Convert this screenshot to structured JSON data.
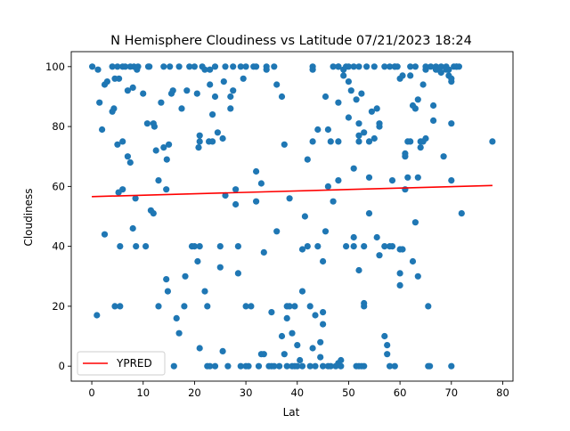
{
  "chart_data": {
    "type": "scatter",
    "title": "N Hemisphere Cloudiness vs Latitude 07/21/2023 18:24",
    "xlabel": "Lat",
    "ylabel": "Cloudiness",
    "xlim": [
      -4,
      82
    ],
    "ylim": [
      -5,
      105
    ],
    "xticks": [
      0,
      10,
      20,
      30,
      40,
      50,
      60,
      70,
      80
    ],
    "yticks": [
      0,
      20,
      40,
      60,
      80,
      100
    ],
    "xtick_labels": [
      "0",
      "10",
      "20",
      "30",
      "40",
      "50",
      "60",
      "70",
      "80"
    ],
    "ytick_labels": [
      "0",
      "20",
      "40",
      "60",
      "80",
      "100"
    ],
    "grid": false,
    "legend": {
      "placement": "lower-left",
      "entries": [
        "YPRED"
      ]
    },
    "colors": {
      "points": "#1f77b4",
      "line": "#ff0000"
    },
    "series": [
      {
        "kind": "scatter",
        "points": [
          [
            0.1,
            100
          ],
          [
            1,
            17
          ],
          [
            1.2,
            99
          ],
          [
            1.5,
            88
          ],
          [
            2,
            79
          ],
          [
            2.5,
            44
          ],
          [
            2.5,
            94
          ],
          [
            3,
            95
          ],
          [
            4,
            85
          ],
          [
            4,
            100
          ],
          [
            4.3,
            86
          ],
          [
            4.5,
            96
          ],
          [
            4.5,
            20
          ],
          [
            5,
            100
          ],
          [
            5,
            74
          ],
          [
            5.2,
            58
          ],
          [
            5.3,
            96
          ],
          [
            5.5,
            20
          ],
          [
            5.5,
            40
          ],
          [
            6,
            59
          ],
          [
            6,
            100
          ],
          [
            6,
            75
          ],
          [
            6.5,
            100
          ],
          [
            7,
            92
          ],
          [
            7,
            70
          ],
          [
            7.5,
            100
          ],
          [
            7.5,
            68
          ],
          [
            8,
            46
          ],
          [
            8,
            93
          ],
          [
            8.2,
            100
          ],
          [
            8.5,
            56
          ],
          [
            8.6,
            40
          ],
          [
            8.8,
            99
          ],
          [
            9,
            100
          ],
          [
            10,
            91
          ],
          [
            10.5,
            40
          ],
          [
            10.8,
            81
          ],
          [
            11,
            100
          ],
          [
            11.2,
            100
          ],
          [
            11.5,
            52
          ],
          [
            12,
            81
          ],
          [
            12,
            51
          ],
          [
            12.2,
            80
          ],
          [
            12.5,
            72
          ],
          [
            13,
            20
          ],
          [
            13,
            62
          ],
          [
            13.5,
            88
          ],
          [
            14,
            73
          ],
          [
            14,
            100
          ],
          [
            14.5,
            29
          ],
          [
            14.5,
            59
          ],
          [
            14.6,
            69
          ],
          [
            14.8,
            25
          ],
          [
            15,
            74
          ],
          [
            15.2,
            100
          ],
          [
            15.5,
            91
          ],
          [
            15.8,
            92
          ],
          [
            16,
            0
          ],
          [
            16.5,
            16
          ],
          [
            17,
            11
          ],
          [
            17,
            100
          ],
          [
            17.5,
            86
          ],
          [
            18,
            20
          ],
          [
            18.2,
            30
          ],
          [
            18.5,
            92
          ],
          [
            19,
            100
          ],
          [
            19.5,
            40
          ],
          [
            20,
            40
          ],
          [
            20,
            100
          ],
          [
            20.5,
            91
          ],
          [
            20.6,
            35
          ],
          [
            20.8,
            73
          ],
          [
            21,
            6
          ],
          [
            21,
            40
          ],
          [
            21,
            77
          ],
          [
            21,
            75
          ],
          [
            21.5,
            100
          ],
          [
            22,
            25
          ],
          [
            22,
            99
          ],
          [
            22.5,
            0
          ],
          [
            22.5,
            20
          ],
          [
            22.8,
            75
          ],
          [
            23,
            99
          ],
          [
            23,
            94
          ],
          [
            23,
            0
          ],
          [
            23.5,
            75
          ],
          [
            23.5,
            84
          ],
          [
            24,
            100
          ],
          [
            24,
            0
          ],
          [
            24,
            90
          ],
          [
            24.5,
            78
          ],
          [
            25,
            33
          ],
          [
            25,
            40
          ],
          [
            25.5,
            76
          ],
          [
            25.5,
            5
          ],
          [
            25.7,
            95
          ],
          [
            26,
            100
          ],
          [
            26,
            57
          ],
          [
            26.5,
            0
          ],
          [
            27,
            90
          ],
          [
            27,
            86
          ],
          [
            27.5,
            92
          ],
          [
            27.5,
            100
          ],
          [
            28,
            59
          ],
          [
            28,
            54
          ],
          [
            28.5,
            31
          ],
          [
            28.5,
            40
          ],
          [
            29,
            100
          ],
          [
            29,
            0
          ],
          [
            29.5,
            96
          ],
          [
            30,
            0
          ],
          [
            30,
            20
          ],
          [
            30,
            100
          ],
          [
            30.5,
            0
          ],
          [
            31,
            20
          ],
          [
            31.5,
            100
          ],
          [
            32,
            55
          ],
          [
            32,
            65
          ],
          [
            32,
            100
          ],
          [
            32.5,
            0
          ],
          [
            33,
            4
          ],
          [
            33,
            61
          ],
          [
            33.5,
            38
          ],
          [
            33.5,
            4
          ],
          [
            34,
            100
          ],
          [
            34,
            99
          ],
          [
            34.5,
            0
          ],
          [
            35,
            0
          ],
          [
            35,
            18
          ],
          [
            35.5,
            100
          ],
          [
            35.5,
            0
          ],
          [
            36,
            94
          ],
          [
            36,
            45
          ],
          [
            36.5,
            0
          ],
          [
            37,
            90
          ],
          [
            37,
            10
          ],
          [
            37.5,
            4
          ],
          [
            37.5,
            74
          ],
          [
            38,
            20
          ],
          [
            38,
            0
          ],
          [
            38,
            16
          ],
          [
            38.5,
            56
          ],
          [
            38.5,
            20
          ],
          [
            39,
            11
          ],
          [
            39,
            0
          ],
          [
            39.5,
            20
          ],
          [
            39.5,
            0
          ],
          [
            40,
            0
          ],
          [
            40,
            7
          ],
          [
            40.5,
            2
          ],
          [
            41,
            0
          ],
          [
            41,
            39
          ],
          [
            41,
            25
          ],
          [
            41.5,
            50
          ],
          [
            42,
            40
          ],
          [
            42,
            69
          ],
          [
            42.5,
            0
          ],
          [
            42.5,
            20
          ],
          [
            43,
            100
          ],
          [
            43,
            99
          ],
          [
            43,
            75
          ],
          [
            43,
            6
          ],
          [
            43.5,
            17
          ],
          [
            43.5,
            0
          ],
          [
            44,
            79
          ],
          [
            44,
            40
          ],
          [
            44.5,
            8
          ],
          [
            44.5,
            3
          ],
          [
            45,
            0
          ],
          [
            45,
            35
          ],
          [
            45,
            14
          ],
          [
            45,
            18
          ],
          [
            45.5,
            90
          ],
          [
            45.5,
            45
          ],
          [
            46,
            0
          ],
          [
            46,
            79
          ],
          [
            46,
            60
          ],
          [
            46.5,
            0
          ],
          [
            46.5,
            75
          ],
          [
            47,
            100
          ],
          [
            47,
            55
          ],
          [
            47.5,
            0
          ],
          [
            48,
            1
          ],
          [
            48,
            100
          ],
          [
            48,
            75
          ],
          [
            48,
            100
          ],
          [
            48,
            62
          ],
          [
            48,
            88
          ],
          [
            48.5,
            2
          ],
          [
            48.5,
            0
          ],
          [
            49,
            97
          ],
          [
            49,
            99
          ],
          [
            49.5,
            40
          ],
          [
            49.5,
            100
          ],
          [
            50,
            83
          ],
          [
            50,
            95
          ],
          [
            50,
            100
          ],
          [
            50.5,
            92
          ],
          [
            51,
            66
          ],
          [
            51,
            43
          ],
          [
            51,
            100
          ],
          [
            51,
            40
          ],
          [
            51.5,
            0
          ],
          [
            51.5,
            89
          ],
          [
            52,
            0
          ],
          [
            52,
            100
          ],
          [
            52,
            81
          ],
          [
            52,
            77
          ],
          [
            52,
            32
          ],
          [
            52,
            75
          ],
          [
            52.5,
            91
          ],
          [
            52.5,
            0
          ],
          [
            53,
            78
          ],
          [
            53,
            0
          ],
          [
            53,
            20
          ],
          [
            53,
            21
          ],
          [
            53,
            40
          ],
          [
            53.5,
            100
          ],
          [
            54,
            63
          ],
          [
            54,
            51
          ],
          [
            54,
            75
          ],
          [
            54.5,
            85
          ],
          [
            55,
            76
          ],
          [
            55,
            100
          ],
          [
            55.5,
            43
          ],
          [
            55.5,
            86
          ],
          [
            56,
            80
          ],
          [
            56,
            81
          ],
          [
            56,
            37
          ],
          [
            57,
            40
          ],
          [
            57,
            100
          ],
          [
            57,
            10
          ],
          [
            57.5,
            7
          ],
          [
            57.5,
            4
          ],
          [
            58,
            40
          ],
          [
            58,
            0
          ],
          [
            58,
            100
          ],
          [
            58.5,
            40
          ],
          [
            58.5,
            62
          ],
          [
            59,
            100
          ],
          [
            59,
            0
          ],
          [
            59,
            100
          ],
          [
            59.5,
            100
          ],
          [
            60,
            27
          ],
          [
            60,
            31
          ],
          [
            60,
            39
          ],
          [
            60,
            96
          ],
          [
            60.5,
            97
          ],
          [
            60.5,
            39
          ],
          [
            61,
            59
          ],
          [
            61,
            70
          ],
          [
            61,
            71
          ],
          [
            61.5,
            63
          ],
          [
            61.5,
            75
          ],
          [
            62,
            75
          ],
          [
            62,
            100
          ],
          [
            62,
            97
          ],
          [
            62.5,
            35
          ],
          [
            62.5,
            87
          ],
          [
            63,
            48
          ],
          [
            63,
            86
          ],
          [
            63,
            100
          ],
          [
            63.5,
            30
          ],
          [
            63.5,
            63
          ],
          [
            63.5,
            89
          ],
          [
            64,
            73
          ],
          [
            64,
            75
          ],
          [
            64.5,
            94
          ],
          [
            64.5,
            75
          ],
          [
            65,
            76
          ],
          [
            65,
            100
          ],
          [
            65,
            99
          ],
          [
            65.5,
            20
          ],
          [
            65.5,
            0
          ],
          [
            65.8,
            0
          ],
          [
            66,
            100
          ],
          [
            66.5,
            87
          ],
          [
            66.5,
            82
          ],
          [
            67,
            100
          ],
          [
            67,
            99
          ],
          [
            67.5,
            99
          ],
          [
            68,
            100
          ],
          [
            68,
            98
          ],
          [
            68.5,
            70
          ],
          [
            69,
            100
          ],
          [
            69,
            99
          ],
          [
            69.5,
            99
          ],
          [
            69.5,
            97
          ],
          [
            70,
            95
          ],
          [
            70,
            96
          ],
          [
            70,
            81
          ],
          [
            70,
            62
          ],
          [
            70,
            0
          ],
          [
            70.5,
            100
          ],
          [
            71,
            100
          ],
          [
            71,
            100
          ],
          [
            71.5,
            100
          ],
          [
            72,
            51
          ],
          [
            78,
            75
          ]
        ]
      },
      {
        "kind": "line",
        "name": "YPRED",
        "x": [
          0,
          78
        ],
        "y": [
          56.6,
          60.3
        ]
      }
    ]
  }
}
